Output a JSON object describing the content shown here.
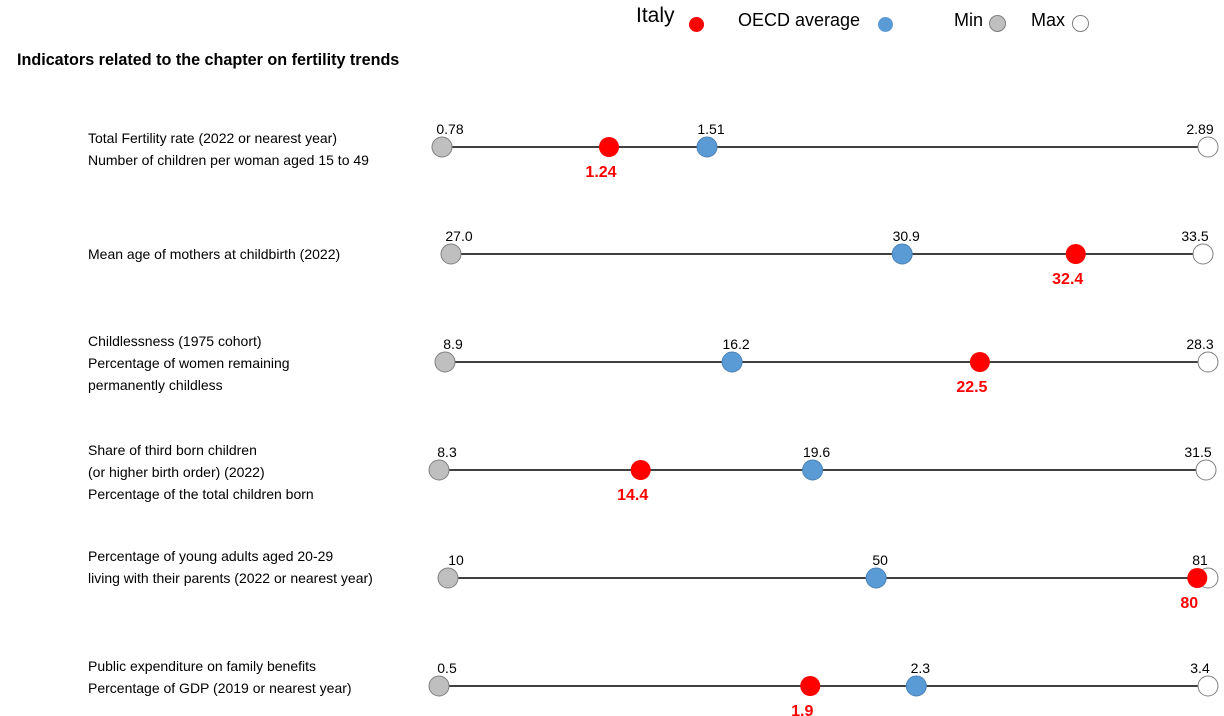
{
  "legend": {
    "italy": "Italy",
    "oecd": "OECD average",
    "min": "Min",
    "max": "Max"
  },
  "colors": {
    "italy": "#ff0000",
    "oecd": "#5b9bd5",
    "min": "#bfbfbf",
    "max": "#ffffff"
  },
  "chart_data": {
    "type": "dumbbell",
    "title": "Indicators related to the chapter on fertility trends",
    "series": [
      "Italy",
      "OECD average",
      "Min",
      "Max"
    ],
    "indicators": [
      {
        "label": [
          "Total Fertility rate (2022 or nearest year)",
          "Number of children per woman aged 15 to 49"
        ],
        "min": 0.78,
        "max": 2.89,
        "oecd": 1.51,
        "italy": 1.24,
        "min_label": "0.78",
        "max_label": "2.89",
        "oecd_label": "1.51",
        "italy_label": "1.24"
      },
      {
        "label": [
          "Mean age of mothers at childbirth (2022)"
        ],
        "min": 27.0,
        "max": 33.5,
        "oecd": 30.9,
        "italy": 32.4,
        "min_label": "27.0",
        "max_label": "33.5",
        "oecd_label": "30.9",
        "italy_label": "32.4"
      },
      {
        "label": [
          "Childlessness (1975 cohort)",
          "Percentage of women remaining",
          "permanently childless"
        ],
        "min": 8.9,
        "max": 28.3,
        "oecd": 16.2,
        "italy": 22.5,
        "min_label": "8.9",
        "max_label": "28.3",
        "oecd_label": "16.2",
        "italy_label": "22.5"
      },
      {
        "label": [
          "Share of third born children",
          "(or higher birth order) (2022)",
          "Percentage of the total children born"
        ],
        "min": 8.3,
        "max": 31.5,
        "oecd": 19.6,
        "italy": 14.4,
        "min_label": "8.3",
        "max_label": "31.5",
        "oecd_label": "19.6",
        "italy_label": "14.4"
      },
      {
        "label": [
          "Percentage of young adults aged 20-29",
          "living with their parents (2022 or nearest year)"
        ],
        "min": 10,
        "max": 81,
        "oecd": 50,
        "italy": 80,
        "min_label": "10",
        "max_label": "81",
        "oecd_label": "50",
        "italy_label": "80"
      },
      {
        "label": [
          "Public expenditure on family benefits",
          "Percentage of GDP (2019 or nearest year)"
        ],
        "min": 0.5,
        "max": 3.4,
        "oecd": 2.3,
        "italy": 1.9,
        "min_label": "0.5",
        "max_label": "3.4",
        "oecd_label": "2.3",
        "italy_label": "1.9"
      }
    ]
  }
}
